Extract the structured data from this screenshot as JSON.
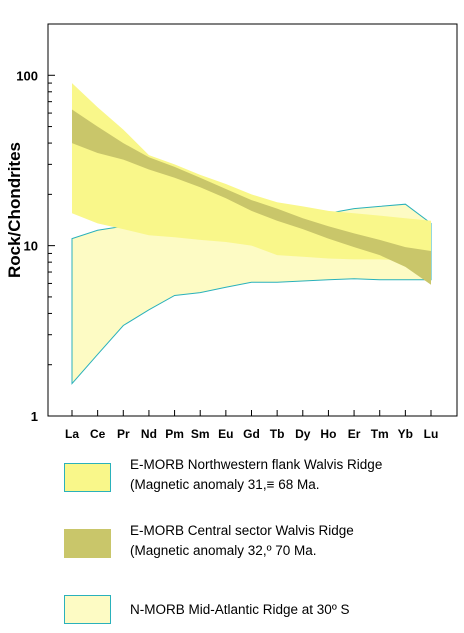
{
  "chart_data": {
    "type": "area",
    "ylabel": "Rock/Chondrites",
    "yscale": "log",
    "ylim": [
      1,
      200
    ],
    "yticks": [
      {
        "value": 1,
        "label": "1"
      },
      {
        "value": 10,
        "label": "10"
      },
      {
        "value": 100,
        "label": "100"
      }
    ],
    "categories": [
      "La",
      "Ce",
      "Pr",
      "Nd",
      "Pm",
      "Sm",
      "Eu",
      "Gd",
      "Tb",
      "Dy",
      "Ho",
      "Er",
      "Tm",
      "Yb",
      "Lu"
    ],
    "series": [
      {
        "name_lines": [
          "E-MORB Northwestern flank Walvis Ridge",
          "(Magnetic anomaly 31,≡ 68 Ma."
        ],
        "fill": "#f9f78a",
        "upper": [
          90,
          65,
          48,
          34,
          30,
          26,
          23,
          20,
          18,
          17,
          16,
          15.5,
          15,
          14.5,
          14
        ],
        "lower": [
          15.5,
          13.5,
          12.5,
          11.5,
          11.2,
          10.8,
          10.5,
          10,
          8.8,
          8.6,
          8.4,
          8.3,
          8.3,
          8.2,
          8.2
        ]
      },
      {
        "name_lines": [
          "E-MORB Central sector Walvis Ridge",
          "(Magnetic anomaly 32,º 70 Ma."
        ],
        "fill": "#c9c66a",
        "upper": [
          63,
          50,
          40,
          33,
          29,
          25,
          21.5,
          18.5,
          16.5,
          14.5,
          13,
          11.8,
          10.8,
          9.8,
          9.3
        ],
        "lower": [
          40,
          35,
          32,
          28,
          25,
          22,
          19,
          16,
          14,
          12.5,
          11,
          9.8,
          8.8,
          7.5,
          5.9
        ]
      },
      {
        "name_lines": [
          "N-MORB Mid-Atlantic Ridge at 30º S"
        ],
        "fill": "#fdfbc4",
        "stroke": "#2ab1bb",
        "upper": [
          11,
          12.3,
          13,
          13,
          12.8,
          12.5,
          12.5,
          12.8,
          13.5,
          14.5,
          15.5,
          16.5,
          17,
          17.5,
          13.5
        ],
        "lower": [
          1.55,
          2.3,
          3.4,
          4.2,
          5.1,
          5.3,
          5.7,
          6.1,
          6.1,
          6.2,
          6.3,
          6.4,
          6.3,
          6.3,
          6.3
        ]
      }
    ]
  },
  "legend": [
    {
      "lines": [
        "E-MORB Northwestern flank Walvis Ridge",
        "(Magnetic anomaly 31,≡ 68 Ma."
      ],
      "fill": "#f9f78a",
      "stroke": "#2ab1bb"
    },
    {
      "lines": [
        "E-MORB Central sector Walvis Ridge",
        "(Magnetic anomaly 32,º 70 Ma."
      ],
      "fill": "#c9c66a",
      "stroke": "none"
    },
    {
      "lines": [
        "N-MORB Mid-Atlantic Ridge at 30º S"
      ],
      "fill": "#fdfbc4",
      "stroke": "#2ab1bb"
    }
  ]
}
